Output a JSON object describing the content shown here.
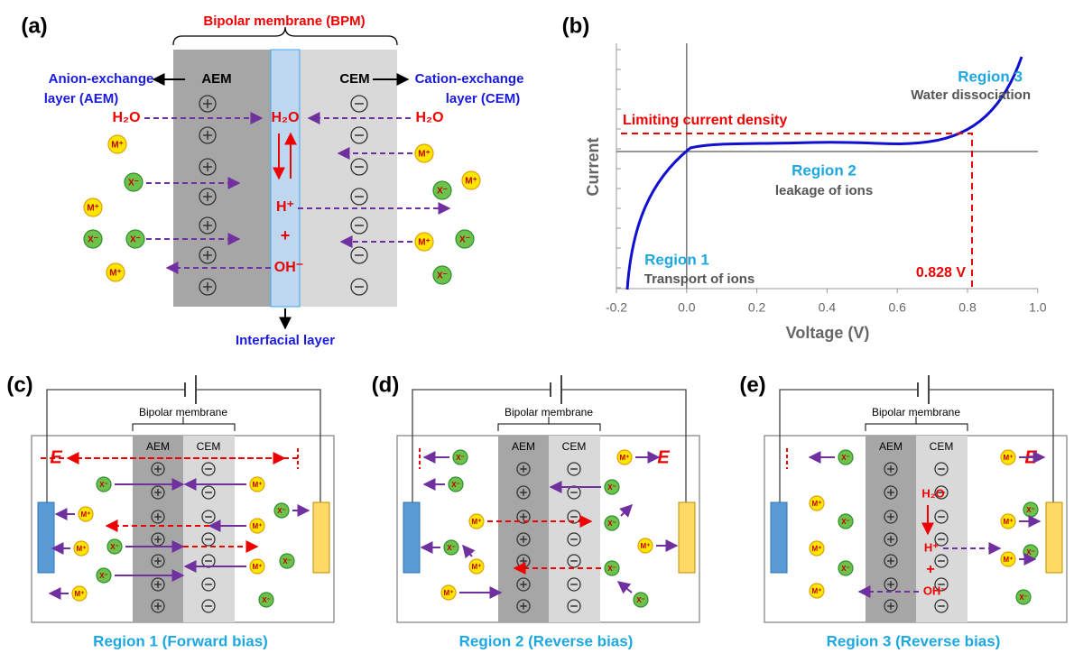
{
  "panel_a": {
    "label": "(a)",
    "bpm_title": "Bipolar membrane (BPM)",
    "aem": "AEM",
    "cem": "CEM",
    "anion_layer": [
      "Anion-exchange",
      "layer (AEM)"
    ],
    "cation_layer": [
      "Cation-exchange",
      "layer (CEM)"
    ],
    "water": "H₂O",
    "proton": "H⁺",
    "plus": "+",
    "hydroxide": "OH⁻",
    "interfacial": "Interfacial layer"
  },
  "ions": {
    "cation": "M⁺",
    "anion": "X⁻"
  },
  "panel_b": {
    "label": "(b)",
    "y_axis": "Current",
    "x_axis": "Voltage (V)",
    "xticks": [
      "-0.2",
      "0.0",
      "0.2",
      "0.4",
      "0.6",
      "0.8",
      "1.0"
    ],
    "limiting": "Limiting current density",
    "region1": "Region 1",
    "region1_desc": "Transport of ions",
    "region2": "Region 2",
    "region2_desc": "leakage of ions",
    "region3": "Region 3",
    "region3_desc": "Water dissociation",
    "voltage_marker": "0.828 V"
  },
  "panels": [
    {
      "label": "(c)",
      "membrane": "Bipolar membrane",
      "aem": "AEM",
      "cem": "CEM",
      "field": "E",
      "caption": "Region 1 (Forward bias)"
    },
    {
      "label": "(d)",
      "membrane": "Bipolar membrane",
      "aem": "AEM",
      "cem": "CEM",
      "field": "E",
      "caption": "Region 2 (Reverse bias)"
    },
    {
      "label": "(e)",
      "membrane": "Bipolar membrane",
      "aem": "AEM",
      "cem": "CEM",
      "field": "E",
      "caption": "Region 3 (Reverse bias)",
      "water": "H₂O",
      "proton": "H⁺",
      "plus": "+",
      "hydroxide": "OH⁻"
    }
  ]
}
